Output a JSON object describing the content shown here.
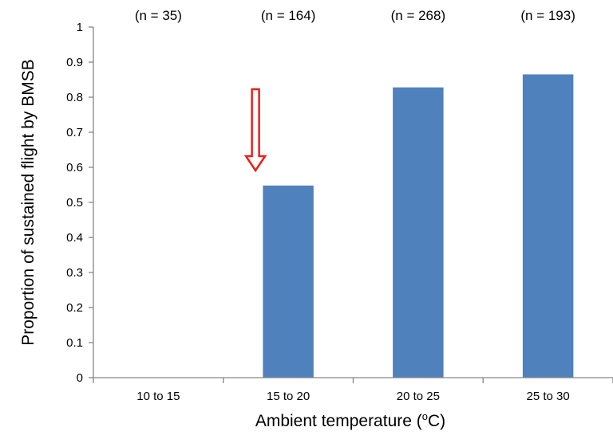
{
  "chart_data": {
    "type": "bar",
    "title": "",
    "categories": [
      "10 to 15",
      "15 to 20",
      "20 to 25",
      "25 to 30"
    ],
    "values": [
      0,
      0.548,
      0.828,
      0.865
    ],
    "sample_sizes": [
      "(n = 35)",
      "(n = 164)",
      "(n = 268)",
      "(n = 193)"
    ],
    "xlabel_prefix": "Ambient temperature (",
    "xlabel_degree": "o",
    "xlabel_suffix": "C)",
    "ylabel": "Proportion of sustained flight by BMSB",
    "ylim": [
      0,
      1
    ],
    "yticks": [
      "0",
      "0.1",
      "0.2",
      "0.3",
      "0.4",
      "0.5",
      "0.6",
      "0.7",
      "0.8",
      "0.9",
      "1"
    ],
    "grid": false,
    "legend": "none",
    "bar_color": "#4f81bd",
    "annotation": {
      "type": "down-arrow",
      "category": "15 to 20",
      "color": "#e8201a"
    }
  }
}
